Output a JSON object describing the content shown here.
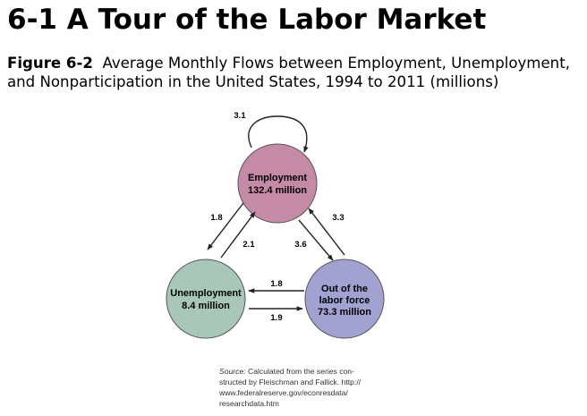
{
  "title": "6-1 A Tour of the Labor Market",
  "caption": {
    "label": "Figure 6-2",
    "text": "Average Monthly Flows between Employment, Unemployment, and Nonparticipation in the United States, 1994 to 2011 (millions)"
  },
  "nodes": {
    "employment": {
      "name": "Employment",
      "value": "132.4 million",
      "color": "#c58aa6"
    },
    "unemployment": {
      "name": "Unemployment",
      "value": "8.4 million",
      "color": "#a9c7b8"
    },
    "out_of_labor_force": {
      "line1": "Out of the",
      "line2": "labor force",
      "value": "73.3 million",
      "color": "#a2a2d2"
    }
  },
  "flows": {
    "employment_to_employment": "3.1",
    "employment_to_unemployment": "1.8",
    "unemployment_to_employment": "2.1",
    "employment_to_out": "3.6",
    "out_to_employment": "3.3",
    "out_to_unemployment": "1.8",
    "unemployment_to_out": "1.9"
  },
  "source": {
    "label": "Source:",
    "text": "Calculated from the series constructed by Fleischman and Fallick. http://www.federalreserve.gov/econresdata/researchdata.htm",
    "lines": [
      "Calculated from the series con-",
      "structed by Fleischman and Fallick. http://",
      "www.federalreserve.gov/econresdata/",
      "researchdata.htm"
    ]
  }
}
